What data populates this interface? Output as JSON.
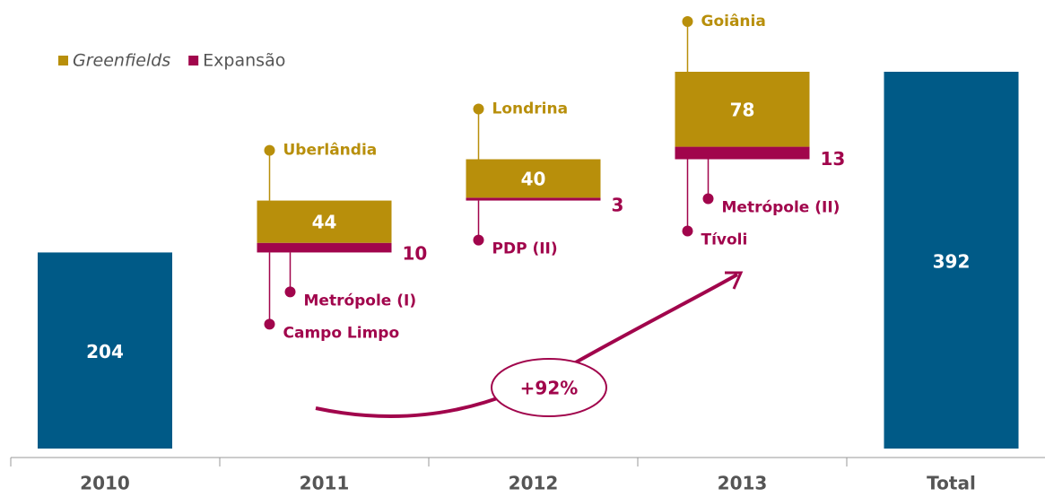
{
  "chart_data": {
    "type": "waterfall",
    "categories": [
      "2010",
      "2011",
      "2012",
      "2013",
      "Total"
    ],
    "values": [
      204,
      null,
      null,
      null,
      392
    ],
    "color": "#005a87",
    "series": [
      {
        "name": "Greenfields",
        "color": "#b88f0b",
        "values": [
          null,
          44,
          40,
          78,
          null
        ],
        "places": [
          null,
          [
            "Uberlândia"
          ],
          [
            "Londrina"
          ],
          [
            "Goiânia"
          ],
          null
        ]
      },
      {
        "name": "Expansão",
        "color": "#a1054c",
        "values": [
          null,
          10,
          3,
          13,
          null
        ],
        "places": [
          null,
          [
            "Metrópole (I)",
            "Campo Limpo"
          ],
          [
            "PDP (II)"
          ],
          [
            "Metrópole (II)",
            "Tívoli"
          ],
          null
        ]
      }
    ],
    "annotation": "+92%"
  }
}
